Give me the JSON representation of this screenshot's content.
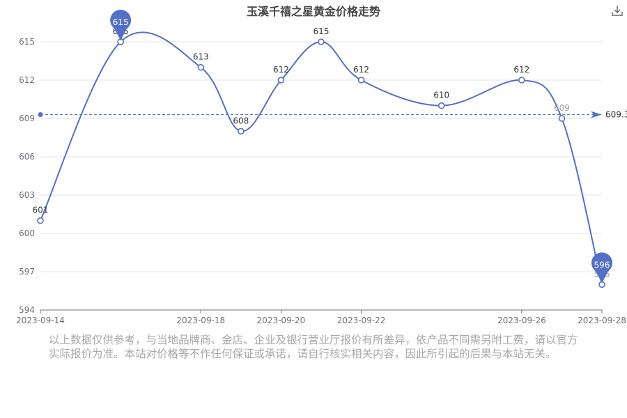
{
  "chart_data": {
    "type": "line",
    "title": "玉溪千禧之星黄金价格走势",
    "xlabel": "",
    "ylabel": "",
    "x": [
      "2023-09-14",
      "2023-09-16",
      "2023-09-18",
      "2023-09-19",
      "2023-09-20",
      "2023-09-21",
      "2023-09-22",
      "2023-09-24",
      "2023-09-26",
      "2023-09-27",
      "2023-09-28"
    ],
    "values": [
      601,
      615,
      613,
      608,
      612,
      615,
      612,
      610,
      612,
      609,
      596
    ],
    "x_tick_labels": [
      "2023-09-14",
      "2023-09-18",
      "2023-09-20",
      "2023-09-22",
      "2023-09-26",
      "2023-09-28"
    ],
    "y_ticks": [
      594,
      597,
      600,
      603,
      606,
      609,
      612,
      615
    ],
    "ylim": [
      594,
      615
    ],
    "average_line": {
      "value": 609.3,
      "label": "609.3"
    },
    "max_marker": {
      "value": 615,
      "label": "615"
    },
    "min_marker": {
      "value": 596,
      "label": "596"
    },
    "grid": true,
    "line_color": "#5470c6"
  },
  "toolbar": {
    "download_icon": "download-icon"
  },
  "disclaimer": "以上数据仅供参考，与当地品牌商、金店、企业及银行营业厅报价有所差异，依产品不同需另附工费，请以官方实际报价为准。本站对价格等不作任何保证或承诺，请自行核实相关内容，因此所引起的后果与本站无关。"
}
